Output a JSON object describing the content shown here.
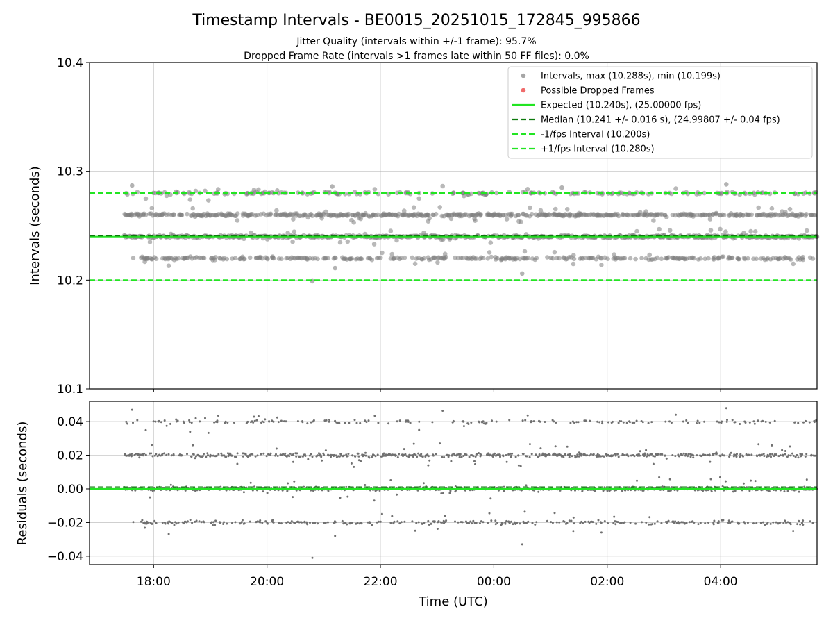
{
  "chart_data": [
    {
      "type": "scatter",
      "title": "Timestamp Intervals - BE0015_20251015_172845_995866",
      "subtitle_lines": [
        "Jitter Quality (intervals within +/-1 frame): 95.7%",
        "Dropped Frame Rate (intervals >1 frames late within 50 FF files): 0.0%"
      ],
      "xlabel": "",
      "ylabel": "Intervals (seconds)",
      "ylim": [
        10.1,
        10.4
      ],
      "yticks": [
        "10.1",
        "10.2",
        "10.3",
        "10.4"
      ],
      "x_time_hours": [
        16.87,
        29.7
      ],
      "data_span_hours": [
        17.48,
        29.7
      ],
      "grid": true,
      "legend_position": "upper right",
      "legend": [
        {
          "label": "Intervals, max (10.288s), min (10.199s)",
          "kind": "marker",
          "color": "#a6a6a6"
        },
        {
          "label": "Possible Dropped Frames",
          "kind": "marker",
          "color": "#f06b6b"
        },
        {
          "label": "Expected (10.240s), (25.00000 fps)",
          "kind": "solid",
          "color": "#22e522"
        },
        {
          "label": "Median (10.241 +/- 0.016 s), (24.99807 +/- 0.04 fps)",
          "kind": "dashed",
          "color": "#0d7a0d"
        },
        {
          "label": "-1/fps Interval (10.200s)",
          "kind": "dashed",
          "color": "#22e522"
        },
        {
          "label": "+1/fps Interval (10.280s)",
          "kind": "dashed",
          "color": "#22e522"
        }
      ],
      "reference_lines": [
        {
          "name": "Expected",
          "value": 10.24,
          "color": "#22e522",
          "style": "solid"
        },
        {
          "name": "Median",
          "value": 10.241,
          "color": "#0d7a0d",
          "style": "dashed"
        },
        {
          "name": "-1/fps Interval",
          "value": 10.2,
          "color": "#22e522",
          "style": "dashed"
        },
        {
          "name": "+1/fps Interval",
          "value": 10.28,
          "color": "#22e522",
          "style": "dashed"
        }
      ],
      "cluster_levels": [
        10.22,
        10.24,
        10.26,
        10.28
      ],
      "cluster_weights": [
        0.2,
        0.35,
        0.33,
        0.12
      ],
      "outliers": [
        {
          "x": 17.62,
          "y": 10.287
        },
        {
          "x": 20.8,
          "y": 10.199
        },
        {
          "x": 21.2,
          "y": 10.211
        },
        {
          "x": 24.5,
          "y": 10.206
        },
        {
          "x": 28.1,
          "y": 10.288
        },
        {
          "x": 25.2,
          "y": 10.285
        },
        {
          "x": 21.15,
          "y": 10.286
        }
      ],
      "point_color": "#808080",
      "n_points": 1700
    },
    {
      "type": "scatter",
      "title": "",
      "xlabel": "Time (UTC)",
      "ylabel": "Residuals (seconds)",
      "ylim": [
        -0.045,
        0.052
      ],
      "yticks": [
        "0.04",
        "0.02",
        "0.00",
        "−0.02",
        "−0.04"
      ],
      "ytick_values": [
        0.04,
        0.02,
        0.0,
        -0.02,
        -0.04
      ],
      "xticks": [
        "18:00",
        "20:00",
        "22:00",
        "00:00",
        "02:00",
        "04:00"
      ],
      "xtick_hours": [
        18,
        20,
        22,
        24,
        26,
        28
      ],
      "grid": true,
      "cluster_levels": [
        -0.02,
        0.0,
        0.02,
        0.04
      ],
      "reference_lines": [
        {
          "name": "Expected",
          "value": 0.0,
          "color": "#22e522",
          "style": "solid"
        },
        {
          "name": "Median",
          "value": 0.001,
          "color": "#0d7a0d",
          "style": "dashed"
        }
      ],
      "outliers": [
        {
          "x": 20.8,
          "y": -0.041
        },
        {
          "x": 17.62,
          "y": 0.047
        },
        {
          "x": 24.5,
          "y": -0.033
        },
        {
          "x": 28.1,
          "y": 0.048
        },
        {
          "x": 21.2,
          "y": -0.028
        }
      ],
      "point_color": "#808080",
      "n_points": 1700
    }
  ]
}
